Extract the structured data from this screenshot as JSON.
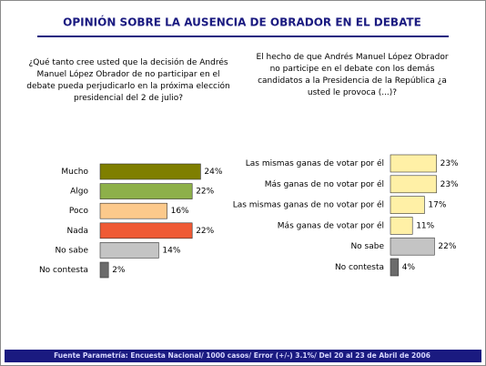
{
  "title": "OPINIÓN SOBRE LA AUSENCIA DE OBRADOR EN EL DEBATE",
  "footer": "Fuente Parametría: Encuesta Nacional/ 1000 casos/ Error (+/-) 3.1%/ Del 20 al 23 de Abril  de 2006",
  "chart_data": [
    {
      "type": "bar",
      "orientation": "horizontal",
      "title": "¿Qué tanto cree usted que la decisión de Andrés Manuel López Obrador de no participar en el debate pueda perjudicarlo en la próxima elección presidencial del 2 de julio?",
      "categories": [
        "Mucho",
        "Algo",
        "Poco",
        "Nada",
        "No sabe",
        "No contesta"
      ],
      "values": [
        24,
        22,
        16,
        22,
        14,
        2
      ],
      "value_labels": [
        "24%",
        "22%",
        "16%",
        "22%",
        "14%",
        "2%"
      ],
      "colors": [
        "#7f7f00",
        "#8db04a",
        "#fcc98b",
        "#ef5a35",
        "#c4c4c4",
        "#6b6b6b"
      ]
    },
    {
      "type": "bar",
      "orientation": "horizontal",
      "title": "El hecho de que Andrés Manuel López Obrador no participe en el debate con los demás candidatos a la Presidencia de la República ¿a usted le provoca (...)?",
      "categories": [
        "Las mismas ganas de votar por él",
        "Más ganas de no votar por él",
        "Las mismas ganas de no votar por él",
        "Más ganas de votar por él",
        "No sabe",
        "No contesta"
      ],
      "values": [
        23,
        23,
        17,
        11,
        22,
        4
      ],
      "value_labels": [
        "23%",
        "23%",
        "17%",
        "11%",
        "22%",
        "4%"
      ],
      "colors": [
        "#fff0a6",
        "#fff0a6",
        "#fff0a6",
        "#fff0a6",
        "#c4c4c4",
        "#6b6b6b"
      ]
    }
  ]
}
